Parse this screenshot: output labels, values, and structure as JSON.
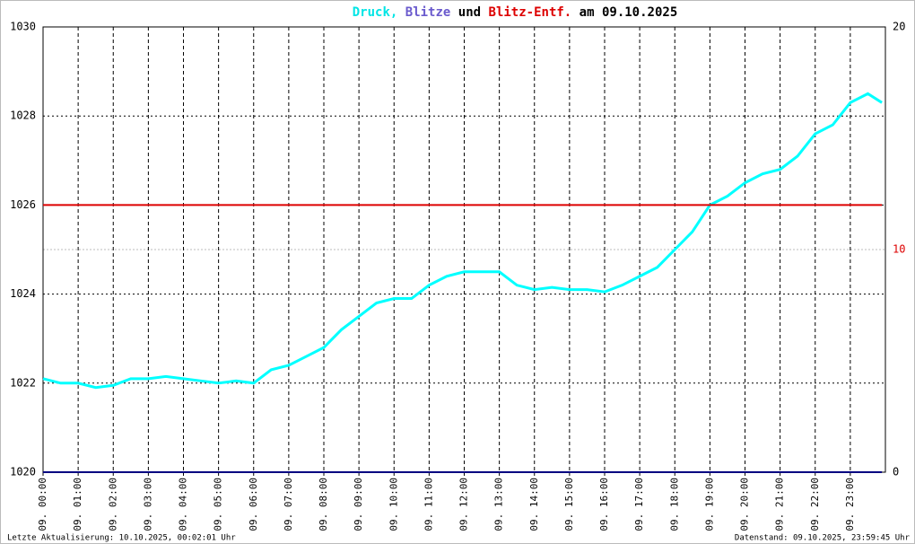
{
  "chart_data": {
    "type": "line",
    "title_parts": [
      {
        "text": "Druck,",
        "color": "#00e5e5"
      },
      {
        "text": "Blitze",
        "color": "#6a5acd"
      },
      {
        "text": "und",
        "color": "#000000"
      },
      {
        "text": "Blitz-Entf.",
        "color": "#dd0000"
      },
      {
        "text": "am 09.10.2025",
        "color": "#000000"
      }
    ],
    "footer_left": "Letzte Aktualisierung: 10.10.2025, 00:02:01 Uhr",
    "footer_right": "Datenstand: 09.10.2025, 23:59:45 Uhr",
    "x": [
      0,
      0.5,
      1,
      1.5,
      2,
      2.5,
      3,
      3.5,
      4,
      4.5,
      5,
      5.5,
      6,
      6.5,
      7,
      7.5,
      8,
      8.5,
      9,
      9.5,
      10,
      10.5,
      11,
      11.5,
      12,
      12.5,
      13,
      13.5,
      14,
      14.5,
      15,
      15.5,
      16,
      16.5,
      17,
      17.5,
      18,
      18.5,
      19,
      19.5,
      20,
      20.5,
      21,
      21.5,
      22,
      22.5,
      23,
      23.5,
      23.9
    ],
    "series": [
      {
        "color": "#00ffff",
        "values": [
          1022.1,
          1022.0,
          1022.0,
          1021.9,
          1021.95,
          1022.1,
          1022.1,
          1022.15,
          1022.1,
          1022.05,
          1022.0,
          1022.05,
          1022.0,
          1022.3,
          1022.4,
          1022.6,
          1022.8,
          1023.2,
          1023.5,
          1023.8,
          1023.9,
          1023.9,
          1024.2,
          1024.4,
          1024.5,
          1024.5,
          1024.5,
          1024.2,
          1024.1,
          1024.15,
          1024.1,
          1024.1,
          1024.05,
          1024.2,
          1024.4,
          1024.6,
          1025.0,
          1025.4,
          1026.0,
          1026.2,
          1026.5,
          1026.7,
          1026.8,
          1027.1,
          1027.6,
          1027.8,
          1028.3,
          1028.5,
          1028.3
        ]
      },
      {
        "color": "#000080",
        "axis": "y2",
        "values": [
          0,
          0,
          0,
          0,
          0,
          0,
          0,
          0,
          0,
          0,
          0,
          0,
          0,
          0,
          0,
          0,
          0,
          0,
          0,
          0,
          0,
          0,
          0,
          0,
          0,
          0,
          0,
          0,
          0,
          0,
          0,
          0,
          0,
          0,
          0,
          0,
          0,
          0,
          0,
          0,
          0,
          0,
          0,
          0,
          0,
          0,
          0,
          0,
          0
        ]
      },
      {
        "color": "#dd0000",
        "axis": "y2",
        "values": [
          12,
          12,
          12,
          12,
          12,
          12,
          12,
          12,
          12,
          12,
          12,
          12,
          12,
          12,
          12,
          12,
          12,
          12,
          12,
          12,
          12,
          12,
          12,
          12,
          12,
          12,
          12,
          12,
          12,
          12,
          12,
          12,
          12,
          12,
          12,
          12,
          12,
          12,
          12,
          12,
          12,
          12,
          12,
          12,
          12,
          12,
          12,
          12,
          12
        ]
      }
    ],
    "xlim": [
      0,
      24
    ],
    "xticks": [
      {
        "value": 0,
        "label": "09. 00:00"
      },
      {
        "value": 1,
        "label": "09. 01:00"
      },
      {
        "value": 2,
        "label": "09. 02:00"
      },
      {
        "value": 3,
        "label": "09. 03:00"
      },
      {
        "value": 4,
        "label": "09. 04:00"
      },
      {
        "value": 5,
        "label": "09. 05:00"
      },
      {
        "value": 6,
        "label": "09. 06:00"
      },
      {
        "value": 7,
        "label": "09. 07:00"
      },
      {
        "value": 8,
        "label": "09. 08:00"
      },
      {
        "value": 9,
        "label": "09. 09:00"
      },
      {
        "value": 10,
        "label": "09. 10:00"
      },
      {
        "value": 11,
        "label": "09. 11:00"
      },
      {
        "value": 12,
        "label": "09. 12:00"
      },
      {
        "value": 13,
        "label": "09. 13:00"
      },
      {
        "value": 14,
        "label": "09. 14:00"
      },
      {
        "value": 15,
        "label": "09. 15:00"
      },
      {
        "value": 16,
        "label": "09. 16:00"
      },
      {
        "value": 17,
        "label": "09. 17:00"
      },
      {
        "value": 18,
        "label": "09. 18:00"
      },
      {
        "value": 19,
        "label": "09. 19:00"
      },
      {
        "value": 20,
        "label": "09. 20:00"
      },
      {
        "value": 21,
        "label": "09. 21:00"
      },
      {
        "value": 22,
        "label": "09. 22:00"
      },
      {
        "value": 23,
        "label": "09. 23:00"
      }
    ],
    "ylim": [
      1020,
      1030
    ],
    "yticks": [
      1020,
      1022,
      1024,
      1026,
      1028,
      1030
    ],
    "y2lim": [
      0,
      20
    ],
    "y2ticks": [
      0,
      10,
      20
    ],
    "y2tick_colors": [
      "#000000",
      "#dd0000",
      "#000000"
    ],
    "grid": true
  }
}
